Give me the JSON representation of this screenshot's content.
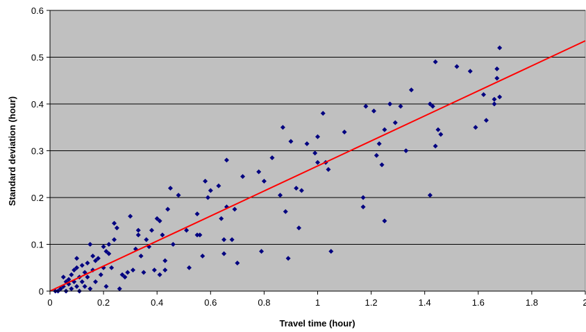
{
  "chart_data": {
    "type": "scatter",
    "title": "",
    "xlabel": "Travel time (hour)",
    "ylabel": "Standard deviation (hour)",
    "xlim": [
      0,
      2
    ],
    "ylim": [
      0,
      0.6
    ],
    "x_ticks": [
      "0",
      "0.2",
      "0.4",
      "0.6",
      "0.8",
      "1",
      "1.2",
      "1.4",
      "1.6",
      "1.8",
      "2"
    ],
    "y_ticks": [
      "0",
      "0.1",
      "0.2",
      "0.3",
      "0.4",
      "0.5",
      "0.6"
    ],
    "grid": "horizontal",
    "legend": "none",
    "colors": {
      "plot_bg": "#c0c0c0",
      "points": "#000080",
      "fit_line": "#ff0000",
      "grid": "#000000"
    },
    "series": [
      {
        "marker": "diamond",
        "points": [
          [
            0.02,
            0.0
          ],
          [
            0.03,
            0.0
          ],
          [
            0.04,
            0.005
          ],
          [
            0.05,
            0.01
          ],
          [
            0.05,
            0.03
          ],
          [
            0.06,
            0.0
          ],
          [
            0.06,
            0.02
          ],
          [
            0.07,
            0.015
          ],
          [
            0.07,
            0.025
          ],
          [
            0.08,
            0.005
          ],
          [
            0.08,
            0.035
          ],
          [
            0.09,
            0.02
          ],
          [
            0.09,
            0.045
          ],
          [
            0.1,
            0.01
          ],
          [
            0.1,
            0.05
          ],
          [
            0.1,
            0.07
          ],
          [
            0.11,
            0.0
          ],
          [
            0.11,
            0.03
          ],
          [
            0.12,
            0.055
          ],
          [
            0.12,
            0.02
          ],
          [
            0.13,
            0.04
          ],
          [
            0.13,
            0.01
          ],
          [
            0.14,
            0.06
          ],
          [
            0.14,
            0.03
          ],
          [
            0.15,
            0.1
          ],
          [
            0.15,
            0.005
          ],
          [
            0.16,
            0.075
          ],
          [
            0.16,
            0.045
          ],
          [
            0.17,
            0.065
          ],
          [
            0.17,
            0.02
          ],
          [
            0.18,
            0.07
          ],
          [
            0.19,
            0.035
          ],
          [
            0.2,
            0.095
          ],
          [
            0.2,
            0.05
          ],
          [
            0.21,
            0.085
          ],
          [
            0.21,
            0.01
          ],
          [
            0.22,
            0.1
          ],
          [
            0.22,
            0.08
          ],
          [
            0.23,
            0.05
          ],
          [
            0.24,
            0.11
          ],
          [
            0.24,
            0.145
          ],
          [
            0.25,
            0.135
          ],
          [
            0.26,
            0.005
          ],
          [
            0.27,
            0.035
          ],
          [
            0.28,
            0.03
          ],
          [
            0.29,
            0.04
          ],
          [
            0.3,
            0.16
          ],
          [
            0.31,
            0.045
          ],
          [
            0.32,
            0.09
          ],
          [
            0.33,
            0.12
          ],
          [
            0.33,
            0.13
          ],
          [
            0.34,
            0.075
          ],
          [
            0.35,
            0.04
          ],
          [
            0.36,
            0.11
          ],
          [
            0.37,
            0.095
          ],
          [
            0.38,
            0.13
          ],
          [
            0.39,
            0.045
          ],
          [
            0.4,
            0.155
          ],
          [
            0.41,
            0.15
          ],
          [
            0.41,
            0.035
          ],
          [
            0.42,
            0.12
          ],
          [
            0.43,
            0.065
          ],
          [
            0.43,
            0.045
          ],
          [
            0.44,
            0.175
          ],
          [
            0.45,
            0.22
          ],
          [
            0.46,
            0.1
          ],
          [
            0.48,
            0.205
          ],
          [
            0.51,
            0.13
          ],
          [
            0.52,
            0.05
          ],
          [
            0.55,
            0.165
          ],
          [
            0.55,
            0.12
          ],
          [
            0.56,
            0.12
          ],
          [
            0.57,
            0.075
          ],
          [
            0.58,
            0.235
          ],
          [
            0.59,
            0.2
          ],
          [
            0.6,
            0.215
          ],
          [
            0.63,
            0.225
          ],
          [
            0.64,
            0.155
          ],
          [
            0.65,
            0.08
          ],
          [
            0.65,
            0.11
          ],
          [
            0.66,
            0.18
          ],
          [
            0.66,
            0.28
          ],
          [
            0.68,
            0.11
          ],
          [
            0.69,
            0.175
          ],
          [
            0.7,
            0.06
          ],
          [
            0.72,
            0.245
          ],
          [
            0.78,
            0.255
          ],
          [
            0.79,
            0.085
          ],
          [
            0.8,
            0.235
          ],
          [
            0.83,
            0.285
          ],
          [
            0.86,
            0.205
          ],
          [
            0.87,
            0.35
          ],
          [
            0.88,
            0.17
          ],
          [
            0.89,
            0.07
          ],
          [
            0.9,
            0.32
          ],
          [
            0.92,
            0.22
          ],
          [
            0.93,
            0.135
          ],
          [
            0.94,
            0.215
          ],
          [
            0.96,
            0.315
          ],
          [
            0.99,
            0.295
          ],
          [
            1.0,
            0.33
          ],
          [
            1.0,
            0.275
          ],
          [
            1.02,
            0.38
          ],
          [
            1.03,
            0.275
          ],
          [
            1.04,
            0.26
          ],
          [
            1.05,
            0.085
          ],
          [
            1.1,
            0.34
          ],
          [
            1.17,
            0.18
          ],
          [
            1.17,
            0.2
          ],
          [
            1.18,
            0.395
          ],
          [
            1.21,
            0.385
          ],
          [
            1.22,
            0.29
          ],
          [
            1.23,
            0.315
          ],
          [
            1.24,
            0.27
          ],
          [
            1.25,
            0.15
          ],
          [
            1.25,
            0.345
          ],
          [
            1.27,
            0.4
          ],
          [
            1.29,
            0.36
          ],
          [
            1.31,
            0.395
          ],
          [
            1.33,
            0.3
          ],
          [
            1.35,
            0.43
          ],
          [
            1.42,
            0.205
          ],
          [
            1.42,
            0.4
          ],
          [
            1.43,
            0.395
          ],
          [
            1.44,
            0.31
          ],
          [
            1.44,
            0.49
          ],
          [
            1.45,
            0.345
          ],
          [
            1.46,
            0.335
          ],
          [
            1.52,
            0.48
          ],
          [
            1.57,
            0.47
          ],
          [
            1.59,
            0.35
          ],
          [
            1.62,
            0.42
          ],
          [
            1.63,
            0.365
          ],
          [
            1.66,
            0.4
          ],
          [
            1.66,
            0.41
          ],
          [
            1.67,
            0.455
          ],
          [
            1.67,
            0.475
          ],
          [
            1.68,
            0.52
          ],
          [
            1.68,
            0.415
          ]
        ]
      }
    ],
    "fit_line": {
      "x": [
        0,
        2
      ],
      "y": [
        0,
        0.535
      ]
    }
  }
}
